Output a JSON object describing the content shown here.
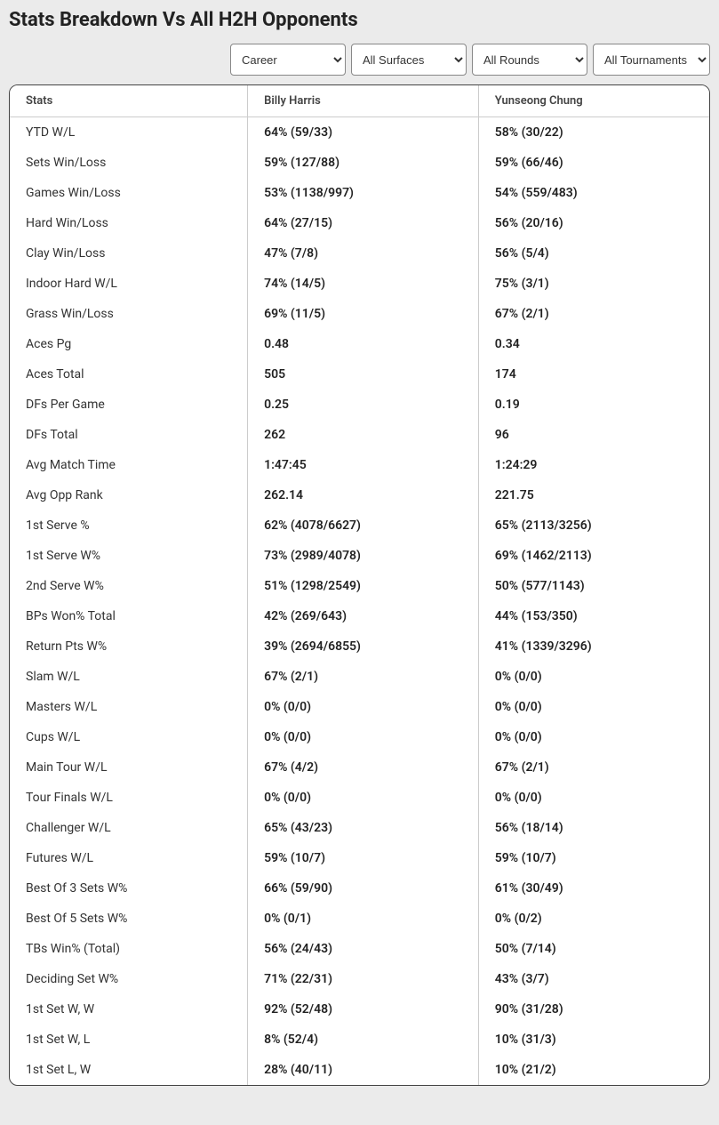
{
  "title": "Stats Breakdown Vs All H2H Opponents",
  "filters": {
    "period": {
      "selected": "Career",
      "options": [
        "Career"
      ]
    },
    "surface": {
      "selected": "All Surfaces",
      "options": [
        "All Surfaces"
      ]
    },
    "round": {
      "selected": "All Rounds",
      "options": [
        "All Rounds"
      ]
    },
    "tourn": {
      "selected": "All Tournaments",
      "options": [
        "All Tournaments"
      ]
    }
  },
  "columns": {
    "stats": "Stats",
    "player1": "Billy Harris",
    "player2": "Yunseong Chung"
  },
  "rows": [
    {
      "stat": "YTD W/L",
      "p1": "64% (59/33)",
      "p2": "58% (30/22)"
    },
    {
      "stat": "Sets Win/Loss",
      "p1": "59% (127/88)",
      "p2": "59% (66/46)"
    },
    {
      "stat": "Games Win/Loss",
      "p1": "53% (1138/997)",
      "p2": "54% (559/483)"
    },
    {
      "stat": "Hard Win/Loss",
      "p1": "64% (27/15)",
      "p2": "56% (20/16)"
    },
    {
      "stat": "Clay Win/Loss",
      "p1": "47% (7/8)",
      "p2": "56% (5/4)"
    },
    {
      "stat": "Indoor Hard W/L",
      "p1": "74% (14/5)",
      "p2": "75% (3/1)"
    },
    {
      "stat": "Grass Win/Loss",
      "p1": "69% (11/5)",
      "p2": "67% (2/1)"
    },
    {
      "stat": "Aces Pg",
      "p1": "0.48",
      "p2": "0.34"
    },
    {
      "stat": "Aces Total",
      "p1": "505",
      "p2": "174"
    },
    {
      "stat": "DFs Per Game",
      "p1": "0.25",
      "p2": "0.19"
    },
    {
      "stat": "DFs Total",
      "p1": "262",
      "p2": "96"
    },
    {
      "stat": "Avg Match Time",
      "p1": "1:47:45",
      "p2": "1:24:29"
    },
    {
      "stat": "Avg Opp Rank",
      "p1": "262.14",
      "p2": "221.75"
    },
    {
      "stat": "1st Serve %",
      "p1": "62% (4078/6627)",
      "p2": "65% (2113/3256)"
    },
    {
      "stat": "1st Serve W%",
      "p1": "73% (2989/4078)",
      "p2": "69% (1462/2113)"
    },
    {
      "stat": "2nd Serve W%",
      "p1": "51% (1298/2549)",
      "p2": "50% (577/1143)"
    },
    {
      "stat": "BPs Won% Total",
      "p1": "42% (269/643)",
      "p2": "44% (153/350)"
    },
    {
      "stat": "Return Pts W%",
      "p1": "39% (2694/6855)",
      "p2": "41% (1339/3296)"
    },
    {
      "stat": "Slam W/L",
      "p1": "67% (2/1)",
      "p2": "0% (0/0)"
    },
    {
      "stat": "Masters W/L",
      "p1": "0% (0/0)",
      "p2": "0% (0/0)"
    },
    {
      "stat": "Cups W/L",
      "p1": "0% (0/0)",
      "p2": "0% (0/0)"
    },
    {
      "stat": "Main Tour W/L",
      "p1": "67% (4/2)",
      "p2": "67% (2/1)"
    },
    {
      "stat": "Tour Finals W/L",
      "p1": "0% (0/0)",
      "p2": "0% (0/0)"
    },
    {
      "stat": "Challenger W/L",
      "p1": "65% (43/23)",
      "p2": "56% (18/14)"
    },
    {
      "stat": "Futures W/L",
      "p1": "59% (10/7)",
      "p2": "59% (10/7)"
    },
    {
      "stat": "Best Of 3 Sets W%",
      "p1": "66% (59/90)",
      "p2": "61% (30/49)"
    },
    {
      "stat": "Best Of 5 Sets W%",
      "p1": "0% (0/1)",
      "p2": "0% (0/2)"
    },
    {
      "stat": "TBs Win% (Total)",
      "p1": "56% (24/43)",
      "p2": "50% (7/14)"
    },
    {
      "stat": "Deciding Set W%",
      "p1": "71% (22/31)",
      "p2": "43% (3/7)"
    },
    {
      "stat": "1st Set W, W",
      "p1": "92% (52/48)",
      "p2": "90% (31/28)"
    },
    {
      "stat": "1st Set W, L",
      "p1": "8% (52/4)",
      "p2": "10% (31/3)"
    },
    {
      "stat": "1st Set L, W",
      "p1": "28% (40/11)",
      "p2": "10% (21/2)"
    }
  ]
}
